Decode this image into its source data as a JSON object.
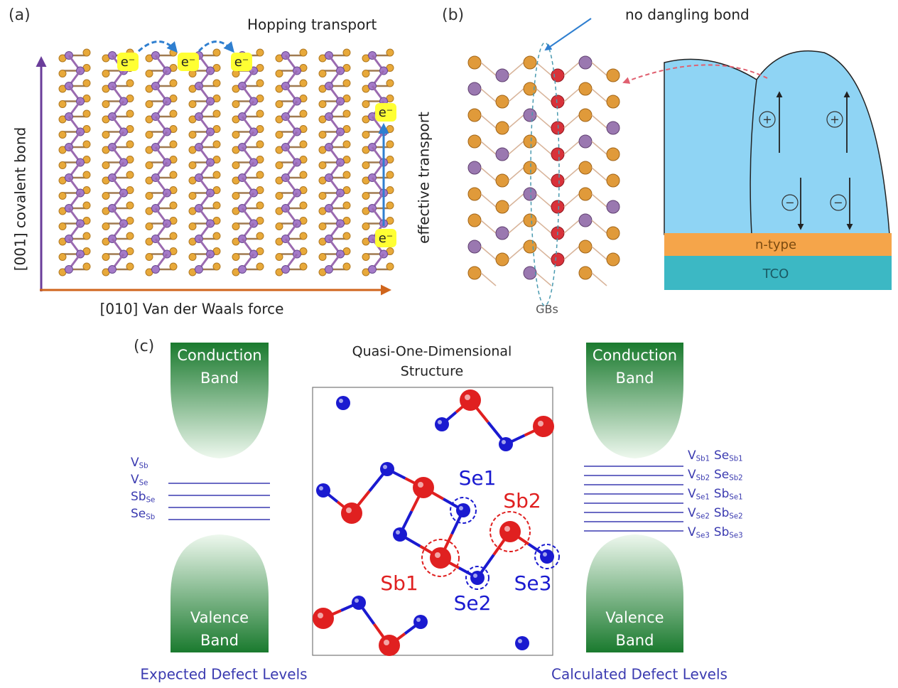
{
  "panel_a": {
    "label": "(a)",
    "title": "Hopping transport",
    "electron_labels": [
      "e⁻",
      "e⁻",
      "e⁻",
      "e⁻",
      "e⁻"
    ],
    "y_axis": "[001] covalent bond",
    "x_axis": "[010] Van der Waals force",
    "side_label": "effective transport"
  },
  "panel_b": {
    "label": "(b)",
    "annotation": "no dangling bond",
    "gb_label": "GBs",
    "layers": [
      "n-type",
      "TCO"
    ],
    "charges": [
      "+",
      "+",
      "−",
      "−"
    ]
  },
  "panel_c": {
    "label": "(c)",
    "conduction_band": [
      "Conduction",
      "Band"
    ],
    "valence_band": [
      "Valence",
      "Band"
    ],
    "structure_title": [
      "Quasi-One-Dimensional",
      "Structure"
    ],
    "expected_caption": "Expected Defect Levels",
    "calculated_caption": "Calculated Defect Levels",
    "expected_levels": [
      {
        "main": "V",
        "sub": "Sb"
      },
      {
        "main": "V",
        "sub": "Se"
      },
      {
        "main": "Sb",
        "sub": "Se"
      },
      {
        "main": "Se",
        "sub": "Sb"
      }
    ],
    "calculated_levels": [
      [
        {
          "main": "V",
          "sub": "Sb1"
        },
        {
          "main": "Se",
          "sub": "Sb1"
        }
      ],
      [
        {
          "main": "V",
          "sub": "Sb2"
        },
        {
          "main": "Se",
          "sub": "Sb2"
        }
      ],
      [
        {
          "main": "V",
          "sub": "Se1"
        },
        {
          "main": "Sb",
          "sub": "Se1"
        }
      ],
      [
        {
          "main": "V",
          "sub": "Se2"
        },
        {
          "main": "Sb",
          "sub": "Se2"
        }
      ],
      [
        {
          "main": "V",
          "sub": "Se3"
        },
        {
          "main": "Sb",
          "sub": "Se3"
        }
      ]
    ],
    "atom_labels": [
      "Se1",
      "Sb2",
      "Sb1",
      "Se2",
      "Se3"
    ]
  }
}
